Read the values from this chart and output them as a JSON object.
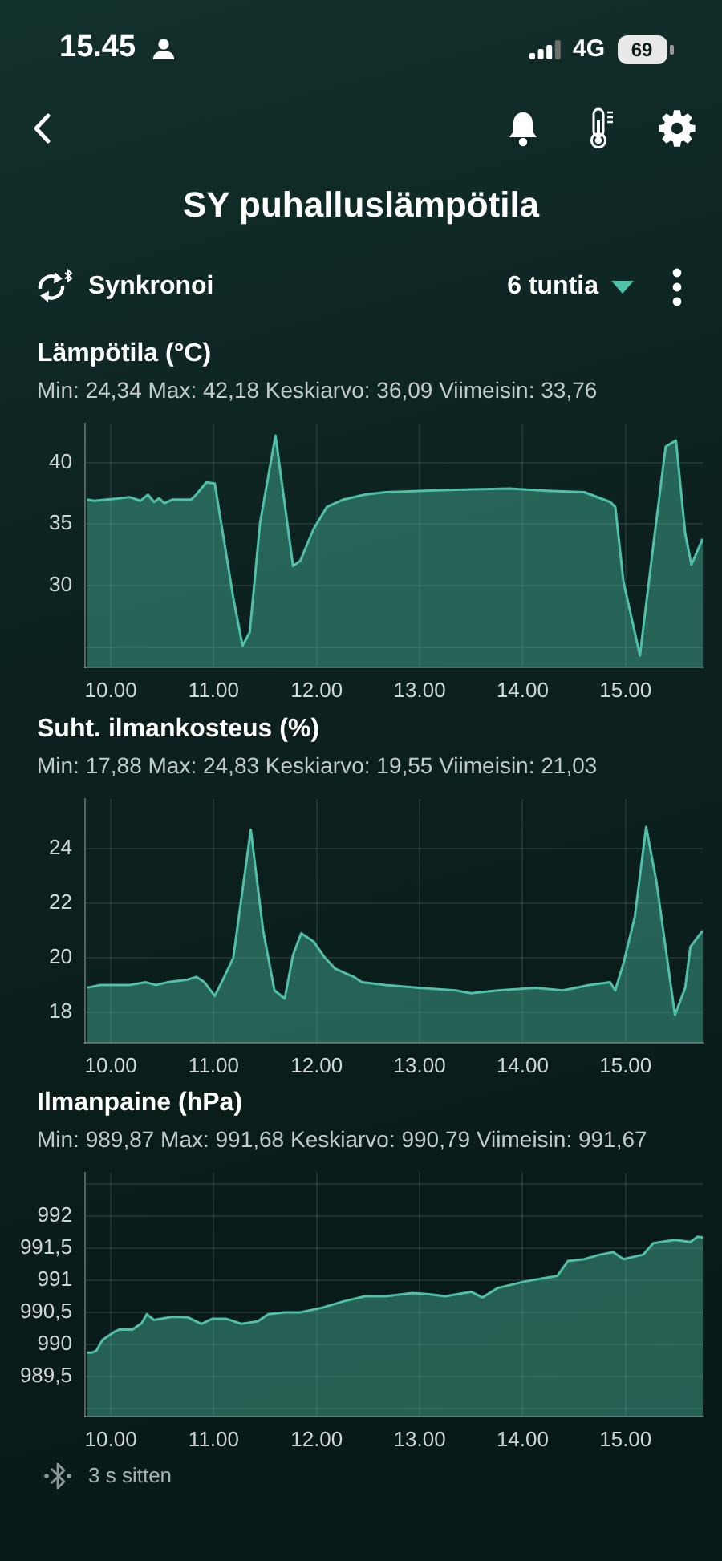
{
  "chart_data": [
    {
      "type": "other",
      "title": "SY puhalluslämpötila",
      "annotations": [
        "15.45",
        "4G",
        "69",
        "Synkronoi",
        "6 tuntia"
      ]
    },
    {
      "type": "area",
      "title": "Lämpötila (°C)",
      "subtitle": "Min: 24,34 Max: 42,18 Keskiarvo: 36,09 Viimeisin: 33,76",
      "color": "#4fc1a8",
      "grid": true,
      "x": [
        9.77,
        9.84,
        10.08,
        10.18,
        10.29,
        10.36,
        10.42,
        10.47,
        10.52,
        10.6,
        10.78,
        10.83,
        10.93,
        11.01,
        11.19,
        11.28,
        11.35,
        11.45,
        11.6,
        11.77,
        11.84,
        11.97,
        12.1,
        12.26,
        12.47,
        12.67,
        12.99,
        13.35,
        13.87,
        14.28,
        14.6,
        14.85,
        14.9,
        14.98,
        15.14,
        15.27,
        15.39,
        15.49,
        15.58,
        15.64,
        15.75
      ],
      "values": [
        37.0,
        36.9,
        37.1,
        37.2,
        36.9,
        37.4,
        36.8,
        37.1,
        36.7,
        37.0,
        37.0,
        37.4,
        38.4,
        38.3,
        29.0,
        25.1,
        26.2,
        35.1,
        42.2,
        31.6,
        32.0,
        34.6,
        36.4,
        37.0,
        37.4,
        37.6,
        37.7,
        37.8,
        37.9,
        37.7,
        37.6,
        36.8,
        36.4,
        30.3,
        24.3,
        33.3,
        41.3,
        41.8,
        34.2,
        31.7,
        33.8
      ],
      "xlim": [
        9.75,
        15.75
      ],
      "xticks": [
        {
          "value": 10,
          "label": "10.00"
        },
        {
          "value": 11,
          "label": "11.00"
        },
        {
          "value": 12,
          "label": "12.00"
        },
        {
          "value": 13,
          "label": "13.00"
        },
        {
          "value": 14,
          "label": "14.00"
        },
        {
          "value": 15,
          "label": "15.00"
        }
      ],
      "ylim": [
        23.34,
        43.18
      ],
      "yticks": [
        {
          "value": 25,
          "label": null
        },
        30,
        35,
        40
      ]
    },
    {
      "type": "area",
      "title": "Suht. ilmankosteus (%)",
      "subtitle": "Min: 17,88 Max: 24,83 Keskiarvo: 19,55 Viimeisin: 21,03",
      "color": "#4fc1a8",
      "grid": true,
      "x": [
        9.77,
        9.9,
        10.05,
        10.18,
        10.34,
        10.44,
        10.55,
        10.75,
        10.83,
        10.91,
        11.01,
        11.09,
        11.19,
        11.36,
        11.48,
        11.59,
        11.69,
        11.77,
        11.85,
        11.97,
        12.08,
        12.18,
        12.36,
        12.44,
        12.67,
        12.99,
        13.35,
        13.5,
        13.76,
        14.13,
        14.39,
        14.65,
        14.85,
        14.9,
        14.98,
        15.09,
        15.2,
        15.3,
        15.48,
        15.58,
        15.63,
        15.69,
        15.75
      ],
      "values": [
        18.9,
        19.0,
        19.0,
        19.0,
        19.1,
        19.0,
        19.1,
        19.2,
        19.3,
        19.1,
        18.6,
        19.2,
        20.0,
        24.7,
        21.0,
        18.8,
        18.5,
        20.1,
        20.9,
        20.6,
        20.0,
        19.6,
        19.3,
        19.1,
        19.0,
        18.9,
        18.8,
        18.7,
        18.8,
        18.9,
        18.8,
        19.0,
        19.1,
        18.8,
        19.8,
        21.5,
        24.8,
        22.8,
        17.9,
        18.9,
        20.4,
        20.7,
        21.0
      ],
      "xlim": [
        9.75,
        15.75
      ],
      "xticks": [
        {
          "value": 10,
          "label": "10.00"
        },
        {
          "value": 11,
          "label": "11.00"
        },
        {
          "value": 12,
          "label": "12.00"
        },
        {
          "value": 13,
          "label": "13.00"
        },
        {
          "value": 14,
          "label": "14.00"
        },
        {
          "value": 15,
          "label": "15.00"
        }
      ],
      "ylim": [
        16.88,
        25.83
      ],
      "yticks": [
        18,
        20,
        22,
        24
      ]
    },
    {
      "type": "area",
      "title": "Ilmanpaine (hPa)",
      "subtitle": "Min: 989,87 Max: 991,68 Keskiarvo: 990,79 Viimeisin: 991,67",
      "color": "#4fc1a8",
      "grid": true,
      "x": [
        9.77,
        9.82,
        9.86,
        9.92,
        10.03,
        10.08,
        10.21,
        10.3,
        10.35,
        10.42,
        10.6,
        10.75,
        10.88,
        10.99,
        11.12,
        11.27,
        11.43,
        11.53,
        11.69,
        11.84,
        12.05,
        12.26,
        12.47,
        12.67,
        12.93,
        13.09,
        13.25,
        13.5,
        13.61,
        13.76,
        14.02,
        14.34,
        14.44,
        14.6,
        14.75,
        14.88,
        14.98,
        15.17,
        15.27,
        15.48,
        15.63,
        15.7,
        15.75
      ],
      "values": [
        989.87,
        989.87,
        989.9,
        990.07,
        990.19,
        990.23,
        990.23,
        990.33,
        990.47,
        990.38,
        990.43,
        990.42,
        990.32,
        990.4,
        990.4,
        990.32,
        990.36,
        990.47,
        990.5,
        990.5,
        990.57,
        990.67,
        990.75,
        990.75,
        990.8,
        990.78,
        990.75,
        990.82,
        990.73,
        990.88,
        990.98,
        991.07,
        991.3,
        991.33,
        991.4,
        991.44,
        991.33,
        991.4,
        991.58,
        991.63,
        991.6,
        991.68,
        991.67
      ],
      "xlim": [
        9.75,
        15.75
      ],
      "xticks": [
        {
          "value": 10,
          "label": "10.00"
        },
        {
          "value": 11,
          "label": "11.00"
        },
        {
          "value": 12,
          "label": "12.00"
        },
        {
          "value": 13,
          "label": "13.00"
        },
        {
          "value": 14,
          "label": "14.00"
        },
        {
          "value": 15,
          "label": "15.00"
        }
      ],
      "ylim": [
        988.87,
        992.68
      ],
      "yticks": [
        {
          "value": 989,
          "label": null
        },
        {
          "value": 989.5,
          "label": "989,5"
        },
        990,
        {
          "value": 990.5,
          "label": "990,5"
        },
        991,
        {
          "value": 991.5,
          "label": "991,5"
        },
        992,
        {
          "value": 992.5,
          "label": null
        }
      ]
    },
    {
      "type": "other",
      "annotations": [
        "3 s sitten"
      ]
    }
  ]
}
